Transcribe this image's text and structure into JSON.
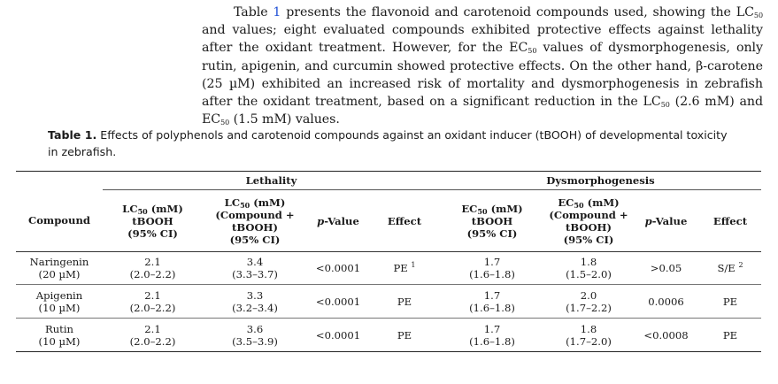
{
  "paragraph": {
    "p1": "Table ",
    "ref": "1",
    "p2": " presents the flavonoid and carotenoid compounds used, showing the LC",
    "sub1": "50",
    "p3": " and values; eight evaluated compounds exhibited protective effects against lethality after the oxidant treatment. However, for the EC",
    "sub2": "50",
    "p4": " values of dysmorphogenesis, only rutin, apigenin, and curcumin showed protective effects. On the other hand, β-carotene (25 µM) exhibited an increased risk of mortality and dysmorphogenesis in zebrafish after the oxidant treatment, based on a significant reduction in the LC",
    "sub3": "50",
    "p5": " (2.6 mM) and EC",
    "sub4": "50",
    "p6": " (1.5 mM) values."
  },
  "caption": {
    "label": "Table 1.",
    "text": " Effects of polyphenols and carotenoid compounds against an oxidant inducer (tBOOH) of developmental toxicity in zebrafish."
  },
  "table": {
    "group_lethality": "Lethality",
    "group_dysmorph": "Dysmorphogenesis",
    "h_compound": "Compound",
    "h_lc_a": "LC",
    "h_lc_a_sub": "50",
    "h_lc_a_rest1": " (mM)",
    "h_lc_a_rest2": "tBOOH",
    "h_lc_a_rest3": "(95% CI)",
    "h_lc_b": "LC",
    "h_lc_b_sub": "50",
    "h_lc_b_rest1": " (mM)",
    "h_lc_b_rest2": "(Compound +",
    "h_lc_b_rest3": "tBOOH)",
    "h_lc_b_rest4": "(95% CI)",
    "h_p_italic": "p",
    "h_p_rest": "-Value",
    "h_effect": "Effect",
    "h_ec_a": "EC",
    "h_ec_a_sub": "50",
    "h_ec_a_rest1": " (mM)",
    "h_ec_a_rest2": "tBOOH",
    "h_ec_a_rest3": "(95% CI)",
    "h_ec_b": "EC",
    "h_ec_b_sub": "50",
    "h_ec_b_rest1": " (mM)",
    "h_ec_b_rest2": "(Compound +",
    "h_ec_b_rest3": "tBOOH)",
    "h_ec_b_rest4": "(95% CI)",
    "h_p2_italic": "p",
    "h_p2_rest": "-Value",
    "h_effect2": "Effect",
    "rows": [
      {
        "compound": "Naringenin",
        "dose": "(20 µM)",
        "lc_a": "2.1",
        "lc_a_ci": "(2.0–2.2)",
        "lc_b": "3.4",
        "lc_b_ci": "(3.3–3.7)",
        "p1": "<0.0001",
        "effect1": "PE",
        "effect1_sup": "1",
        "ec_a": "1.7",
        "ec_a_ci": "(1.6–1.8)",
        "ec_b": "1.8",
        "ec_b_ci": "(1.5–2.0)",
        "p2": ">0.05",
        "effect2": "S/E",
        "effect2_sup": "2"
      },
      {
        "compound": "Apigenin",
        "dose": "(10 µM)",
        "lc_a": "2.1",
        "lc_a_ci": "(2.0–2.2)",
        "lc_b": "3.3",
        "lc_b_ci": "(3.2–3.4)",
        "p1": "<0.0001",
        "effect1": "PE",
        "effect1_sup": "",
        "ec_a": "1.7",
        "ec_a_ci": "(1.6–1.8)",
        "ec_b": "2.0",
        "ec_b_ci": "(1.7–2.2)",
        "p2": "0.0006",
        "effect2": "PE",
        "effect2_sup": ""
      },
      {
        "compound": "Rutin",
        "dose": "(10 µM)",
        "lc_a": "2.1",
        "lc_a_ci": "(2.0–2.2)",
        "lc_b": "3.6",
        "lc_b_ci": "(3.5–3.9)",
        "p1": "<0.0001",
        "effect1": "PE",
        "effect1_sup": "",
        "ec_a": "1.7",
        "ec_a_ci": "(1.6–1.8)",
        "ec_b": "1.8",
        "ec_b_ci": "(1.7–2.0)",
        "p2": "<0.0008",
        "effect2": "PE",
        "effect2_sup": ""
      }
    ]
  }
}
